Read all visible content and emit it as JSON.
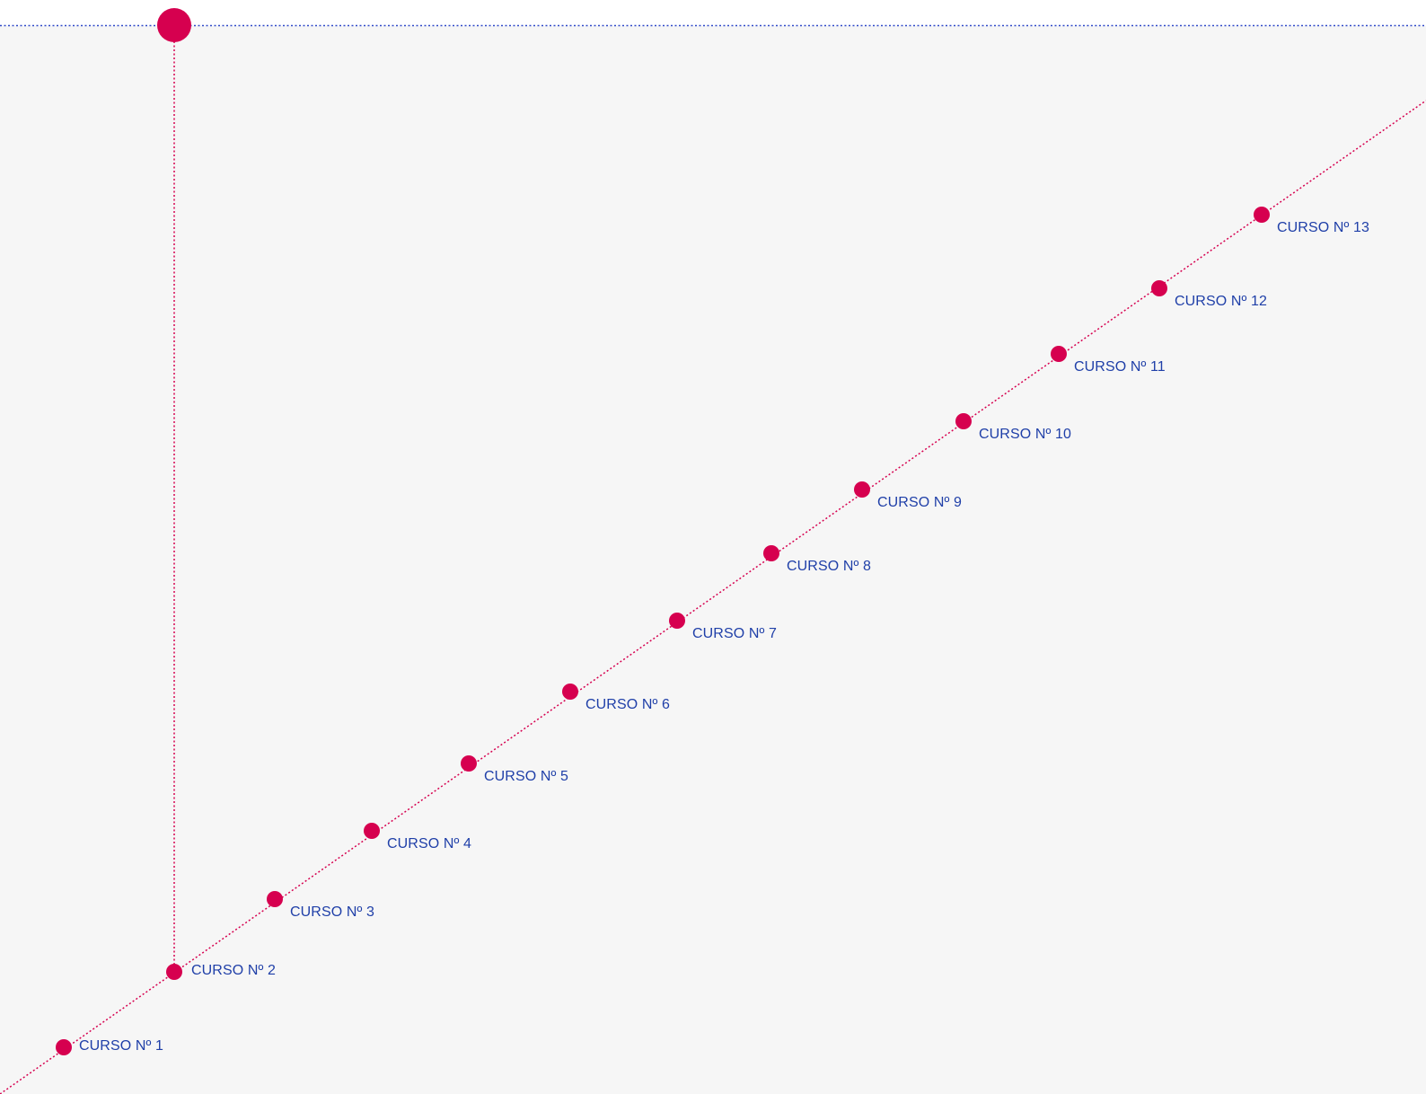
{
  "colors": {
    "accent": "#d6004f",
    "label": "#1f3fa8",
    "horizontal_line": "#2f49c8",
    "panel_background": "#f6f6f6",
    "top_background": "#ffffff"
  },
  "courses": [
    {
      "label": "CURSO Nº 1"
    },
    {
      "label": "CURSO Nº 2"
    },
    {
      "label": "CURSO Nº 3"
    },
    {
      "label": "CURSO Nº 4"
    },
    {
      "label": "CURSO Nº 5"
    },
    {
      "label": "CURSO Nº 6"
    },
    {
      "label": "CURSO Nº 7"
    },
    {
      "label": "CURSO Nº 8"
    },
    {
      "label": "CURSO Nº 9"
    },
    {
      "label": "CURSO Nº 10"
    },
    {
      "label": "CURSO Nº 11"
    },
    {
      "label": "CURSO Nº 12"
    },
    {
      "label": "CURSO Nº 13"
    }
  ],
  "current_course_index": 1
}
